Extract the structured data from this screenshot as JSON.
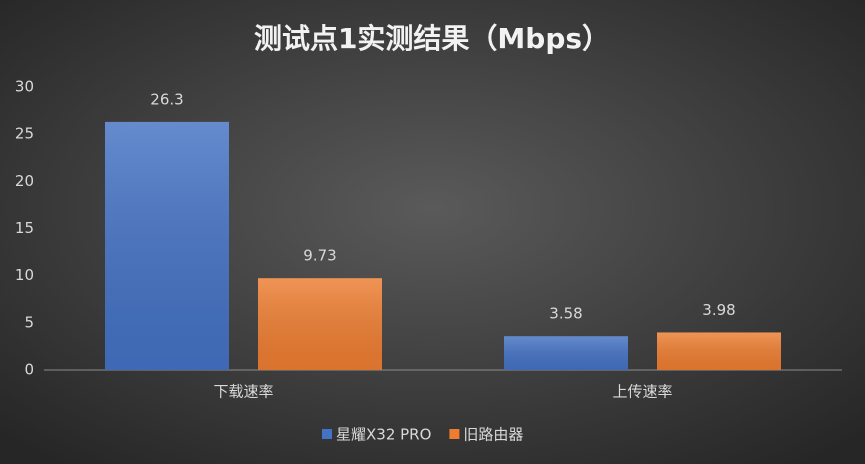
{
  "chart_data": {
    "type": "bar",
    "title": "测试点1实测结果（Mbps）",
    "categories": [
      "下载速率",
      "上传速率"
    ],
    "series": [
      {
        "name": "星耀X32 PRO",
        "color": "#4472c4",
        "values": [
          26.3,
          3.58
        ]
      },
      {
        "name": "旧路由器",
        "color": "#ed7d31",
        "values": [
          9.73,
          3.98
        ]
      }
    ],
    "ylim": [
      0,
      30
    ],
    "yticks": [
      0,
      5,
      10,
      15,
      20,
      25,
      30
    ],
    "grid": false,
    "legend": "bottom"
  }
}
